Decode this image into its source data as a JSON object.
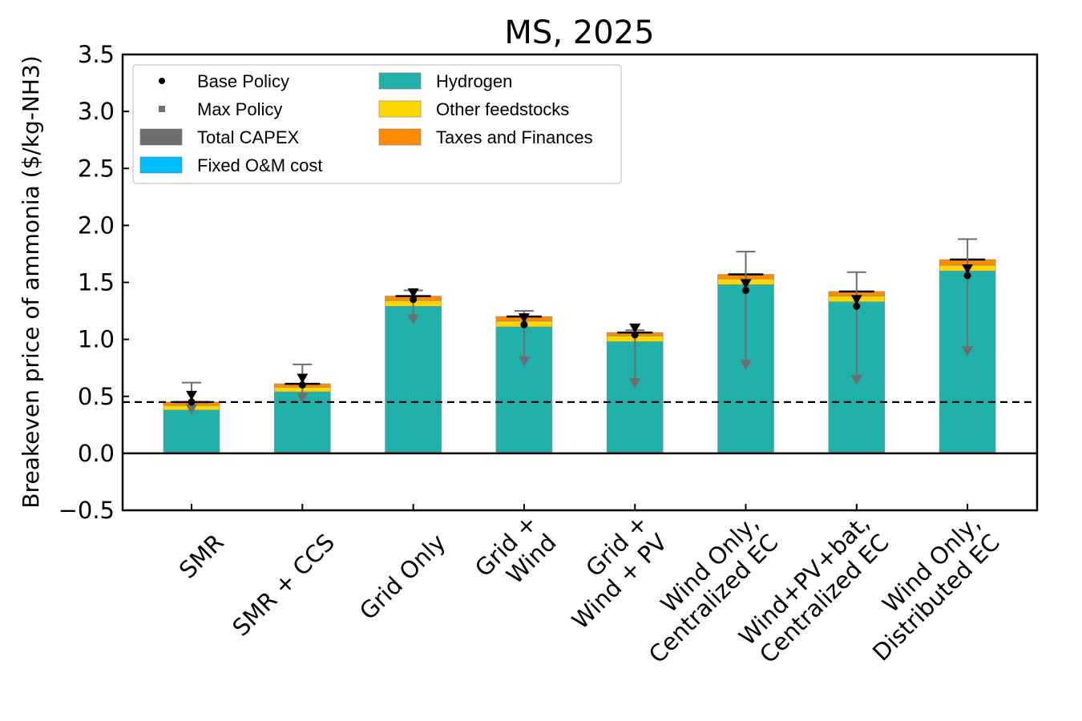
{
  "chart_data": {
    "type": "bar",
    "stacked": true,
    "title": "MS, 2025",
    "ylabel": "Breakeven price of ammonia ($/kg-NH3)",
    "xlabel": "",
    "ylim": [
      -0.5,
      3.5
    ],
    "yticks": [
      -0.5,
      0.0,
      0.5,
      1.0,
      1.5,
      2.0,
      2.5,
      3.0,
      3.5
    ],
    "ytick_labels": [
      "−0.5",
      "0.0",
      "0.5",
      "1.0",
      "1.5",
      "2.0",
      "2.5",
      "3.0",
      "3.5"
    ],
    "categories": [
      [
        "SMR"
      ],
      [
        "SMR + CCS"
      ],
      [
        "Grid Only"
      ],
      [
        "Grid +",
        "Wind"
      ],
      [
        "Grid +",
        "Wind + PV"
      ],
      [
        "Wind Only,",
        "Centralized EC"
      ],
      [
        "Wind+PV+bat,",
        "Centralized EC"
      ],
      [
        "Wind Only,",
        "Distributed EC"
      ]
    ],
    "series": [
      {
        "name": "Total CAPEX",
        "color": "#6e6e6e",
        "values": [
          0.0,
          0.0,
          0.0,
          0.0,
          0.0,
          0.0,
          0.0,
          0.0
        ]
      },
      {
        "name": "Fixed O&M cost",
        "color": "#00bfff",
        "values": [
          0.01,
          0.01,
          0.01,
          0.01,
          0.01,
          0.01,
          0.01,
          0.01
        ]
      },
      {
        "name": "Hydrogen",
        "color": "#20b2aa",
        "values": [
          0.37,
          0.53,
          1.28,
          1.1,
          0.97,
          1.47,
          1.32,
          1.59
        ]
      },
      {
        "name": "Other feedstocks",
        "color": "#ffd700",
        "values": [
          0.04,
          0.04,
          0.05,
          0.05,
          0.05,
          0.05,
          0.05,
          0.05
        ]
      },
      {
        "name": "Taxes and Finances",
        "color": "#ff8c00",
        "values": [
          0.03,
          0.03,
          0.04,
          0.04,
          0.03,
          0.04,
          0.04,
          0.05
        ]
      }
    ],
    "totals": [
      0.45,
      0.61,
      1.38,
      1.2,
      1.06,
      1.57,
      1.42,
      1.7
    ],
    "base_policy": [
      0.45,
      0.6,
      1.35,
      1.13,
      1.04,
      1.43,
      1.29,
      1.56
    ],
    "max_policy": [
      0.38,
      0.48,
      1.17,
      0.8,
      0.61,
      0.77,
      0.64,
      0.89
    ],
    "error_upper": [
      0.62,
      0.78,
      1.43,
      1.25,
      1.08,
      1.77,
      1.59,
      1.88
    ],
    "reference_line": 0.45,
    "legend": {
      "placement": "top-left",
      "entries": [
        {
          "label": "Base Policy",
          "kind": "marker",
          "color": "#000000"
        },
        {
          "label": "Max Policy",
          "kind": "square",
          "color": "#6e6e6e"
        },
        {
          "label": "Total CAPEX",
          "kind": "patch",
          "color": "#6e6e6e"
        },
        {
          "label": "Fixed O&M cost",
          "kind": "patch",
          "color": "#00bfff"
        },
        {
          "label": "Hydrogen",
          "kind": "patch",
          "color": "#20b2aa"
        },
        {
          "label": "Other feedstocks",
          "kind": "patch",
          "color": "#ffd700"
        },
        {
          "label": "Taxes and Finances",
          "kind": "patch",
          "color": "#ff8c00"
        }
      ]
    },
    "grid": false
  }
}
